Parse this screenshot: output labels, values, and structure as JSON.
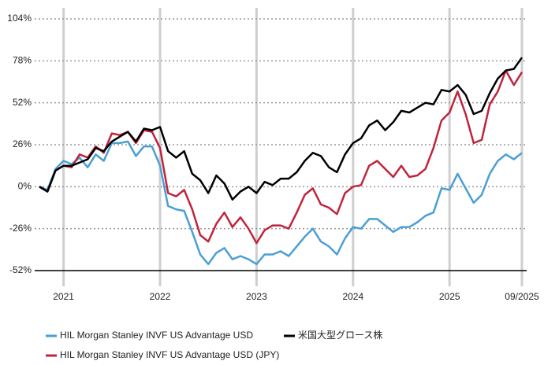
{
  "chart_data": {
    "type": "line",
    "categories": [
      null,
      null,
      null,
      "2021",
      null,
      null,
      null,
      null,
      null,
      null,
      null,
      null,
      null,
      null,
      null,
      "2022",
      null,
      null,
      null,
      null,
      null,
      null,
      null,
      null,
      null,
      null,
      null,
      "2023",
      null,
      null,
      null,
      null,
      null,
      null,
      null,
      null,
      null,
      null,
      null,
      "2024",
      null,
      null,
      null,
      null,
      null,
      null,
      null,
      null,
      null,
      null,
      null,
      "2025",
      null,
      null,
      null,
      null,
      null,
      null,
      null,
      null,
      "09/2025"
    ],
    "series": [
      {
        "name": "HIL Morgan Stanley INVF US Advantage USD",
        "color": "#4a9fd4",
        "values": [
          0,
          -2,
          11,
          16,
          14,
          18,
          12,
          20,
          16,
          27,
          27,
          28,
          19,
          25,
          25,
          13,
          -12,
          -14,
          -15,
          -28,
          -42,
          -48,
          -41,
          -38,
          -45,
          -43,
          -45,
          -48,
          -42,
          -42,
          -40,
          -43,
          -37,
          -31,
          -26,
          -34,
          -37,
          -42,
          -32,
          -25,
          -26,
          -20,
          -20,
          -24,
          -28,
          -25,
          -25,
          -22,
          -18,
          -16,
          -1,
          -2,
          8,
          -1,
          -10,
          -5,
          8,
          16,
          20,
          17,
          21
        ]
      },
      {
        "name": "米国大型グロース株",
        "color": "#000000",
        "values": [
          0,
          -3,
          10,
          13,
          13,
          15,
          17,
          24,
          22,
          28,
          31,
          34,
          28,
          36,
          35,
          37,
          22,
          18,
          22,
          8,
          4,
          -4,
          7,
          2,
          -8,
          -3,
          0,
          -4,
          3,
          1,
          5,
          5,
          9,
          16,
          21,
          19,
          12,
          9,
          20,
          27,
          30,
          38,
          41,
          35,
          40,
          47,
          46,
          49,
          52,
          51,
          60,
          59,
          63,
          57,
          45,
          47,
          58,
          67,
          72,
          73,
          80
        ]
      },
      {
        "name": "HIL Morgan Stanley INVF US Advantage USD (JPY)",
        "color": "#c0243c",
        "values": [
          0,
          -3,
          10,
          13,
          12,
          20,
          18,
          25,
          21,
          33,
          32,
          34,
          27,
          35,
          34,
          24,
          -4,
          -6,
          -2,
          -14,
          -30,
          -34,
          -23,
          -16,
          -25,
          -19,
          -26,
          -35,
          -27,
          -24,
          -24,
          -26,
          -16,
          -5,
          -1,
          -11,
          -13,
          -17,
          -4,
          0,
          1,
          13,
          16,
          11,
          6,
          13,
          6,
          7,
          11,
          24,
          41,
          46,
          59,
          45,
          27,
          29,
          51,
          59,
          72,
          63,
          71
        ]
      }
    ],
    "ylim": [
      -52,
      104
    ],
    "yticks": [
      {
        "value": -52,
        "label": "-52%"
      },
      {
        "value": -26,
        "label": "-26%"
      },
      {
        "value": 0,
        "label": "0%"
      },
      {
        "value": 26,
        "label": "26%"
      },
      {
        "value": 52,
        "label": "52%"
      },
      {
        "value": 78,
        "label": "78%"
      },
      {
        "value": 104,
        "label": "104%"
      }
    ],
    "grid": true,
    "legend": "bottom"
  }
}
